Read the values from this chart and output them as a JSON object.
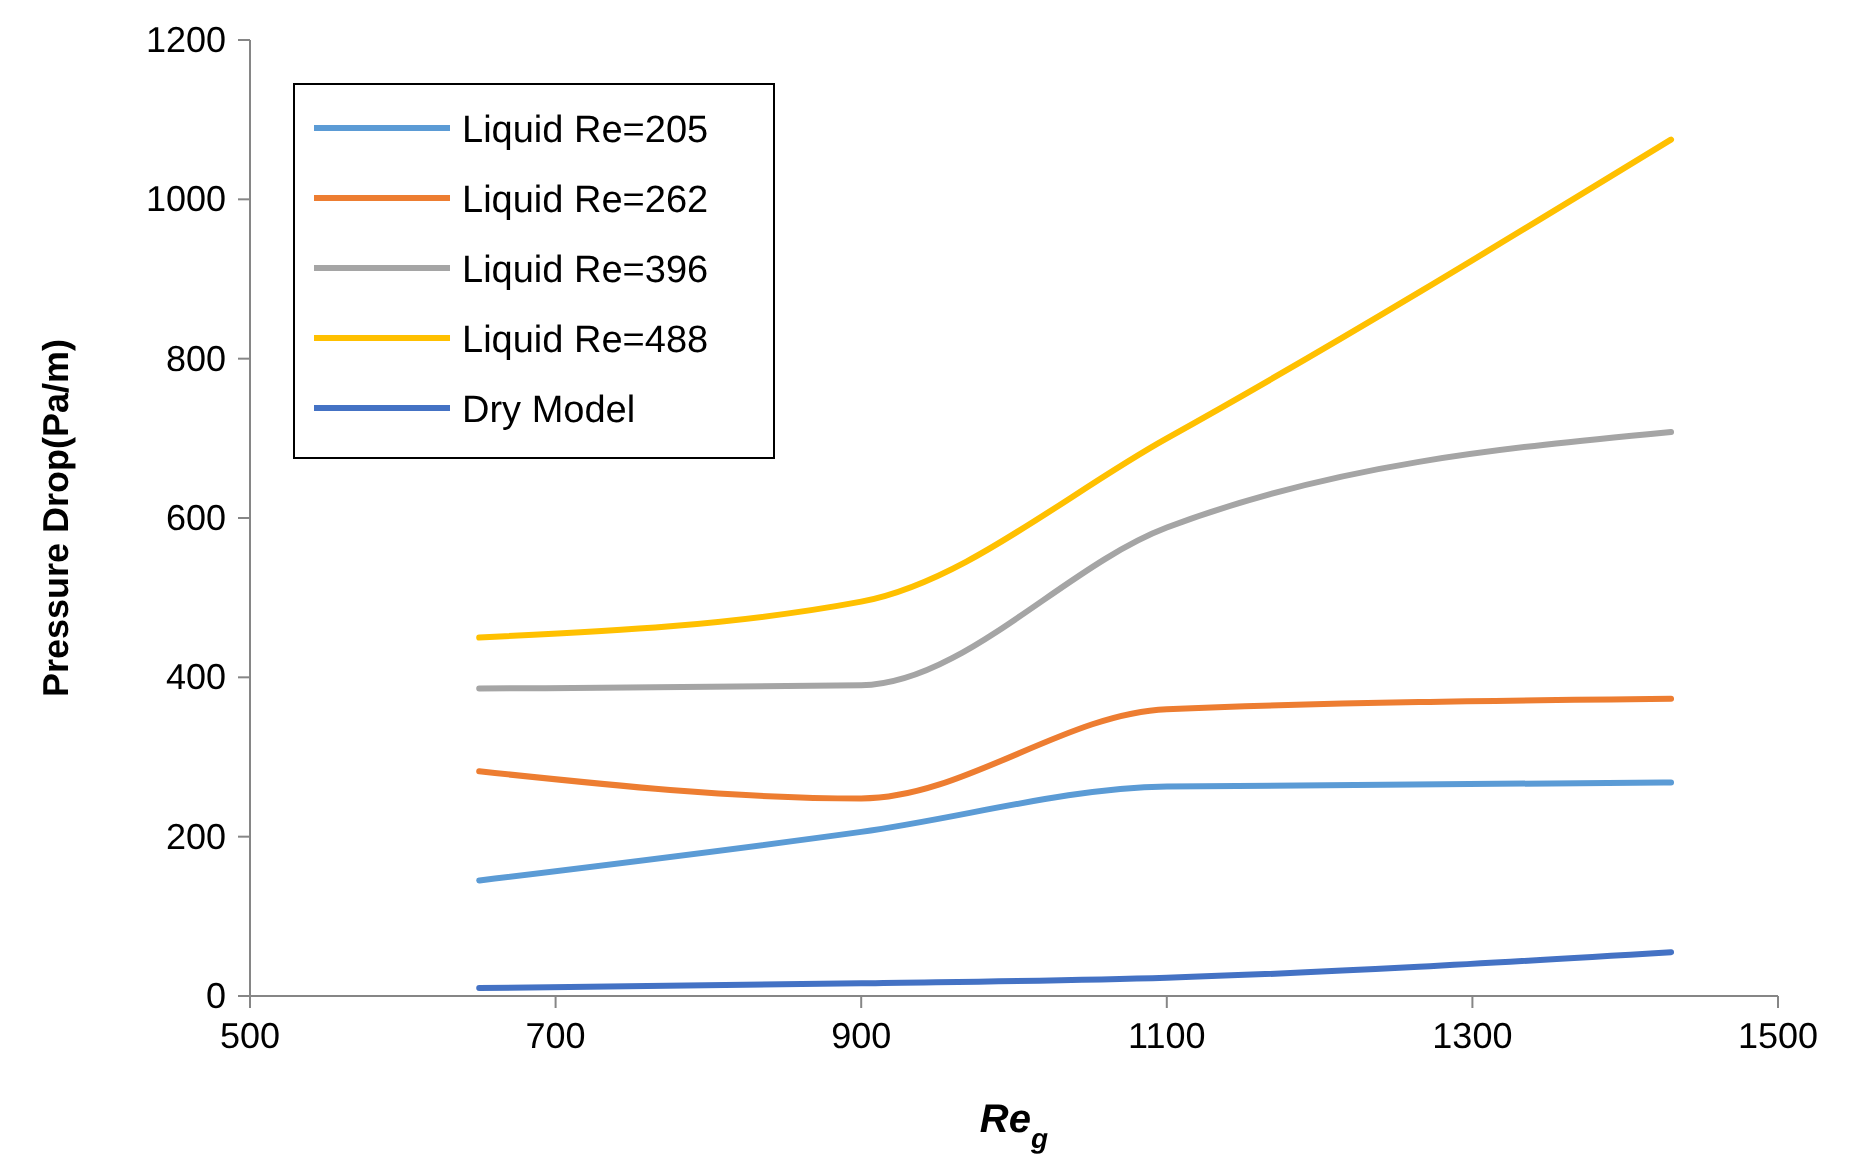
{
  "chart_data": {
    "type": "line",
    "xlabel": "Re$_{g}$",
    "ylabel": "Pressure Drop(Pa/m)",
    "x": [
      650,
      900,
      1100,
      1430
    ],
    "series": [
      {
        "name": "Liquid Re=205",
        "color": "#5b9bd5",
        "values": [
          145,
          206,
          263,
          268
        ]
      },
      {
        "name": "Liquid Re=262",
        "color": "#ed7d31",
        "values": [
          282,
          248,
          360,
          373
        ]
      },
      {
        "name": "Liquid Re=396",
        "color": "#a5a5a5",
        "values": [
          386,
          390,
          588,
          708
        ]
      },
      {
        "name": "Liquid Re=488",
        "color": "#ffc000",
        "values": [
          450,
          495,
          700,
          1075
        ]
      },
      {
        "name": "Dry Model",
        "color": "#4472c4",
        "values": [
          10,
          16,
          23,
          55
        ]
      }
    ],
    "xlim": [
      500,
      1500
    ],
    "xticks": [
      500,
      700,
      900,
      1100,
      1300,
      1500
    ],
    "ylim": [
      0,
      1200
    ],
    "yticks": [
      0,
      200,
      400,
      600,
      800,
      1000,
      1200
    ],
    "grid": false,
    "legend": "top left",
    "marker": "none",
    "line_style": "solid"
  }
}
